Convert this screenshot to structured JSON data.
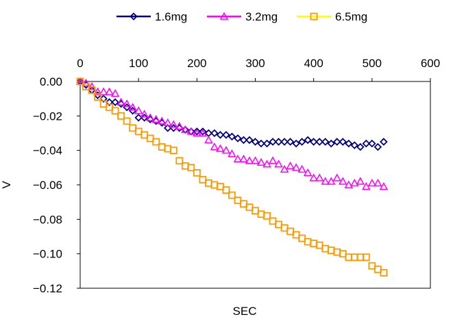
{
  "chart_data": {
    "type": "scatter",
    "title": "",
    "xlabel": "SEC",
    "ylabel": "V",
    "xlim": [
      0,
      600
    ],
    "ylim": [
      -0.12,
      0.0
    ],
    "x_ticks": [
      "0",
      "100",
      "200",
      "300",
      "400",
      "500",
      "600"
    ],
    "x_tick_values": [
      0,
      100,
      200,
      300,
      400,
      500,
      600
    ],
    "y_ticks": [
      "0.00",
      "-0.02",
      "-0.04",
      "-0.06",
      "-0.08",
      "-0.10",
      "-0.12"
    ],
    "y_tick_values": [
      0,
      -0.02,
      -0.04,
      -0.06,
      -0.08,
      -0.1,
      -0.12
    ],
    "legend_position": "top",
    "grid": false,
    "x": [
      0,
      10,
      20,
      30,
      40,
      50,
      60,
      70,
      80,
      90,
      100,
      110,
      120,
      130,
      140,
      150,
      160,
      170,
      180,
      190,
      200,
      210,
      220,
      230,
      240,
      250,
      260,
      270,
      280,
      290,
      300,
      310,
      320,
      330,
      340,
      350,
      360,
      370,
      380,
      390,
      400,
      410,
      420,
      430,
      440,
      450,
      460,
      470,
      480,
      490,
      500,
      510,
      520
    ],
    "series": [
      {
        "name": "1.6mg",
        "color": "#000080",
        "marker": "diamond",
        "values": [
          0,
          -0.002,
          -0.005,
          -0.008,
          -0.01,
          -0.012,
          -0.012,
          -0.013,
          -0.015,
          -0.017,
          -0.021,
          -0.021,
          -0.022,
          -0.023,
          -0.024,
          -0.027,
          -0.027,
          -0.027,
          -0.028,
          -0.029,
          -0.029,
          -0.029,
          -0.03,
          -0.03,
          -0.031,
          -0.031,
          -0.032,
          -0.033,
          -0.034,
          -0.034,
          -0.035,
          -0.036,
          -0.036,
          -0.035,
          -0.035,
          -0.035,
          -0.035,
          -0.036,
          -0.035,
          -0.034,
          -0.035,
          -0.035,
          -0.035,
          -0.036,
          -0.035,
          -0.035,
          -0.036,
          -0.037,
          -0.038,
          -0.036,
          -0.036,
          -0.038,
          -0.035
        ]
      },
      {
        "name": "3.2mg",
        "color": "#FF00FF",
        "marker": "triangle",
        "values": [
          0,
          -0.001,
          -0.003,
          -0.006,
          -0.006,
          -0.006,
          -0.007,
          -0.012,
          -0.013,
          -0.015,
          -0.017,
          -0.019,
          -0.021,
          -0.022,
          -0.023,
          -0.024,
          -0.025,
          -0.026,
          -0.028,
          -0.029,
          -0.03,
          -0.03,
          -0.034,
          -0.038,
          -0.039,
          -0.04,
          -0.042,
          -0.045,
          -0.045,
          -0.046,
          -0.046,
          -0.047,
          -0.048,
          -0.046,
          -0.048,
          -0.051,
          -0.049,
          -0.05,
          -0.051,
          -0.053,
          -0.056,
          -0.056,
          -0.058,
          -0.058,
          -0.056,
          -0.058,
          -0.06,
          -0.059,
          -0.058,
          -0.061,
          -0.059,
          -0.059,
          -0.061
        ]
      },
      {
        "name": "6.5mg",
        "color": "#FF9900",
        "marker": "square",
        "values": [
          0,
          -0.003,
          -0.005,
          -0.009,
          -0.013,
          -0.015,
          -0.017,
          -0.02,
          -0.023,
          -0.027,
          -0.029,
          -0.031,
          -0.033,
          -0.035,
          -0.038,
          -0.039,
          -0.04,
          -0.046,
          -0.049,
          -0.05,
          -0.053,
          -0.057,
          -0.059,
          -0.06,
          -0.061,
          -0.063,
          -0.066,
          -0.069,
          -0.071,
          -0.073,
          -0.075,
          -0.077,
          -0.078,
          -0.081,
          -0.083,
          -0.085,
          -0.087,
          -0.089,
          -0.091,
          -0.093,
          -0.094,
          -0.095,
          -0.097,
          -0.098,
          -0.099,
          -0.1,
          -0.102,
          -0.102,
          -0.102,
          -0.102,
          -0.107,
          -0.109,
          -0.111
        ]
      }
    ]
  }
}
